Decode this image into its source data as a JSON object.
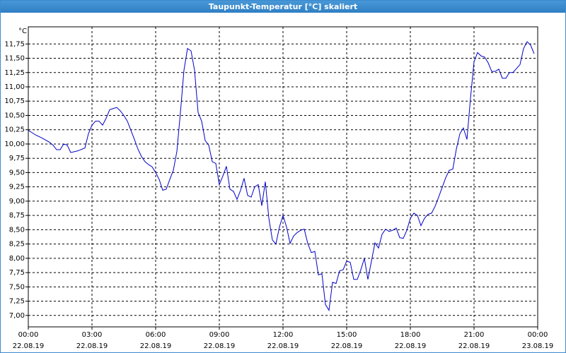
{
  "chart_data": {
    "type": "line",
    "title": "Taupunkt-Temperatur [°C] skaliert",
    "y_unit": "°C",
    "color": "#0000c8",
    "grid": true,
    "xlim": [
      0,
      1440
    ],
    "ylim": [
      6.8,
      12.05
    ],
    "xticks": [
      {
        "value": 0,
        "label": "00:00"
      },
      {
        "value": 180,
        "label": "03:00"
      },
      {
        "value": 360,
        "label": "06:00"
      },
      {
        "value": 540,
        "label": "09:00"
      },
      {
        "value": 720,
        "label": "12:00"
      },
      {
        "value": 900,
        "label": "15:00"
      },
      {
        "value": 1080,
        "label": "18:00"
      },
      {
        "value": 1260,
        "label": "21:00"
      },
      {
        "value": 1440,
        "label": "00:00"
      }
    ],
    "xtick_dates": [
      "22.08.19",
      "22.08.19",
      "22.08.19",
      "22.08.19",
      "22.08.19",
      "22.08.19",
      "22.08.19",
      "22.08.19",
      "23.08.19"
    ],
    "yticks": [
      {
        "value": 7,
        "label": "7,00"
      },
      {
        "value": 7.25,
        "label": "7,25"
      },
      {
        "value": 7.5,
        "label": "7,50"
      },
      {
        "value": 7.75,
        "label": "7,75"
      },
      {
        "value": 8,
        "label": "8,00"
      },
      {
        "value": 8.25,
        "label": "8,25"
      },
      {
        "value": 8.5,
        "label": "8,50"
      },
      {
        "value": 8.75,
        "label": "8,75"
      },
      {
        "value": 9,
        "label": "9,00"
      },
      {
        "value": 9.25,
        "label": "9,25"
      },
      {
        "value": 9.5,
        "label": "9,50"
      },
      {
        "value": 9.75,
        "label": "9,75"
      },
      {
        "value": 10,
        "label": "10,00"
      },
      {
        "value": 10.25,
        "label": "10,25"
      },
      {
        "value": 10.5,
        "label": "10,50"
      },
      {
        "value": 10.75,
        "label": "10,75"
      },
      {
        "value": 11,
        "label": "11,00"
      },
      {
        "value": 11.25,
        "label": "11,25"
      },
      {
        "value": 11.5,
        "label": "11,50"
      },
      {
        "value": 11.75,
        "label": "11,75"
      }
    ],
    "x": [
      0,
      10,
      20,
      40,
      60,
      70,
      80,
      90,
      100,
      110,
      120,
      140,
      160,
      170,
      180,
      190,
      200,
      210,
      220,
      230,
      240,
      250,
      260,
      270,
      280,
      290,
      300,
      310,
      320,
      330,
      340,
      350,
      360,
      370,
      380,
      390,
      400,
      410,
      420,
      430,
      440,
      450,
      460,
      470,
      480,
      490,
      500,
      510,
      520,
      530,
      540,
      550,
      560,
      570,
      580,
      590,
      600,
      610,
      620,
      630,
      640,
      650,
      660,
      670,
      680,
      690,
      700,
      710,
      720,
      730,
      740,
      750,
      760,
      770,
      780,
      790,
      800,
      810,
      820,
      830,
      840,
      850,
      860,
      870,
      880,
      890,
      900,
      910,
      920,
      930,
      940,
      950,
      960,
      970,
      980,
      990,
      1000,
      1010,
      1020,
      1030,
      1040,
      1050,
      1060,
      1070,
      1080,
      1090,
      1100,
      1110,
      1120,
      1130,
      1140,
      1150,
      1160,
      1170,
      1180,
      1190,
      1200,
      1210,
      1220,
      1230,
      1240,
      1250,
      1260,
      1270,
      1280,
      1290,
      1300,
      1310,
      1320,
      1330,
      1340,
      1350,
      1360,
      1370,
      1380,
      1390,
      1400,
      1410,
      1420,
      1430
    ],
    "values": [
      10.24,
      10.2,
      10.16,
      10.1,
      10.03,
      9.98,
      9.9,
      9.9,
      10.0,
      9.98,
      9.85,
      9.88,
      9.93,
      10.18,
      10.33,
      10.4,
      10.4,
      10.33,
      10.45,
      10.6,
      10.62,
      10.64,
      10.58,
      10.5,
      10.4,
      10.24,
      10.08,
      9.91,
      9.78,
      9.69,
      9.64,
      9.6,
      9.5,
      9.38,
      9.19,
      9.21,
      9.38,
      9.54,
      9.87,
      10.55,
      11.29,
      11.67,
      11.63,
      11.29,
      10.55,
      10.4,
      10.06,
      9.98,
      9.69,
      9.66,
      9.29,
      9.44,
      9.61,
      9.21,
      9.17,
      9.03,
      9.19,
      9.4,
      9.1,
      9.07,
      9.25,
      9.29,
      8.92,
      9.34,
      8.7,
      8.32,
      8.25,
      8.55,
      8.75,
      8.55,
      8.26,
      8.39,
      8.45,
      8.49,
      8.51,
      8.26,
      8.1,
      8.12,
      7.71,
      7.73,
      7.19,
      7.09,
      7.58,
      7.56,
      7.78,
      7.8,
      7.95,
      7.93,
      7.63,
      7.63,
      7.8,
      8.0,
      7.63,
      7.95,
      8.27,
      8.18,
      8.42,
      8.51,
      8.47,
      8.49,
      8.53,
      8.36,
      8.35,
      8.49,
      8.7,
      8.79,
      8.75,
      8.57,
      8.7,
      8.77,
      8.79,
      8.91,
      9.07,
      9.24,
      9.41,
      9.54,
      9.56,
      9.91,
      10.18,
      10.28,
      10.08,
      10.8,
      11.44,
      11.6,
      11.54,
      11.52,
      11.42,
      11.27,
      11.27,
      11.31,
      11.15,
      11.15,
      11.25,
      11.25,
      11.32,
      11.39,
      11.67,
      11.79,
      11.73,
      11.58
    ]
  }
}
